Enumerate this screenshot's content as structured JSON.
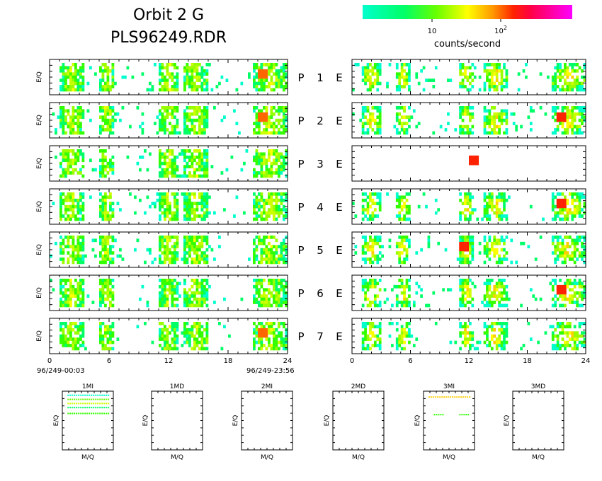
{
  "header": {
    "title_line1": "Orbit 2 G",
    "title_line2": "PLS96249.RDR",
    "colorbar_label": "counts/second",
    "colorbar_tick_10": "10",
    "colorbar_tick_100_base": "10",
    "colorbar_tick_100_exp": "2",
    "colorbar_colors": [
      "#00ffcc",
      "#00ff66",
      "#33ff00",
      "#99ff00",
      "#ffff00",
      "#ffcc00",
      "#ff9900",
      "#ff6600",
      "#ff2200",
      "#ff0033",
      "#ff0066",
      "#ff0099",
      "#ff00cc",
      "#ff00ff"
    ]
  },
  "axes": {
    "ylabel_eq": "E/Q",
    "xlabel_mq": "M/Q",
    "time_start": "96/249-00:03",
    "time_end": "96/249-23:56"
  },
  "chart_data": [
    {
      "type": "heatmap",
      "group": "P",
      "x_unit": "hour",
      "xlim": [
        0,
        24
      ],
      "xticks": [
        0,
        6,
        12,
        18,
        24
      ],
      "xtick_labels": [
        "0",
        "6",
        "12",
        "18",
        "24"
      ],
      "ylabel": "E/Q",
      "panels": [
        {
          "label": "P",
          "num": "1",
          "active_bands": [
            [
              1,
              3.5
            ],
            [
              5,
              6.5
            ],
            [
              11,
              13
            ],
            [
              13.5,
              16
            ],
            [
              20.5,
              24
            ]
          ],
          "peak_hour": 21.5
        },
        {
          "label": "P",
          "num": "2",
          "active_bands": [
            [
              1,
              3.5
            ],
            [
              5,
              6.5
            ],
            [
              11,
              13
            ],
            [
              13.5,
              16
            ],
            [
              20.5,
              24
            ]
          ],
          "peak_hour": 21.5
        },
        {
          "label": "P",
          "num": "3",
          "active_bands": [
            [
              1,
              3.5
            ],
            [
              5,
              6.5
            ],
            [
              11,
              13
            ],
            [
              13.5,
              16
            ],
            [
              20.5,
              24
            ]
          ],
          "peak_hour": null
        },
        {
          "label": "P",
          "num": "4",
          "active_bands": [
            [
              1,
              3.5
            ],
            [
              5,
              6.5
            ],
            [
              11,
              13
            ],
            [
              13.5,
              16
            ],
            [
              20.5,
              24
            ]
          ],
          "peak_hour": null
        },
        {
          "label": "P",
          "num": "5",
          "active_bands": [
            [
              1,
              3.5
            ],
            [
              5,
              6.5
            ],
            [
              11,
              13
            ],
            [
              13.5,
              16
            ],
            [
              20.5,
              24
            ]
          ],
          "peak_hour": null
        },
        {
          "label": "P",
          "num": "6",
          "active_bands": [
            [
              1,
              3.5
            ],
            [
              5,
              6.5
            ],
            [
              11,
              13
            ],
            [
              13.5,
              16
            ],
            [
              20.5,
              24
            ]
          ],
          "peak_hour": null
        },
        {
          "label": "P",
          "num": "7",
          "active_bands": [
            [
              1,
              3.5
            ],
            [
              5,
              6.5
            ],
            [
              11,
              13
            ],
            [
              13.5,
              16
            ],
            [
              20.5,
              24
            ]
          ],
          "peak_hour": 21.5
        }
      ]
    },
    {
      "type": "heatmap",
      "group": "E",
      "x_unit": "hour",
      "xlim": [
        0,
        24
      ],
      "xticks": [
        0,
        6,
        12,
        18,
        24
      ],
      "xtick_labels": [
        "0",
        "6",
        "12",
        "18",
        "24"
      ],
      "panels": [
        {
          "label": "E",
          "num": "1",
          "active_bands": [
            [
              1,
              3
            ],
            [
              4.5,
              6
            ],
            [
              11,
              12.5
            ],
            [
              13.5,
              16
            ],
            [
              20.5,
              24
            ]
          ],
          "peak_hour": null
        },
        {
          "label": "E",
          "num": "2",
          "active_bands": [
            [
              1,
              3
            ],
            [
              4.5,
              6
            ],
            [
              11,
              12.5
            ],
            [
              13.5,
              16
            ],
            [
              20.5,
              24
            ]
          ],
          "peak_hour": 21.5
        },
        {
          "label": "E",
          "num": "3",
          "active_bands": [],
          "peak_hour": 12.5
        },
        {
          "label": "E",
          "num": "4",
          "active_bands": [
            [
              1,
              3
            ],
            [
              4.5,
              6
            ],
            [
              11,
              12.5
            ],
            [
              13.5,
              16
            ],
            [
              20.5,
              24
            ]
          ],
          "peak_hour": 21.5
        },
        {
          "label": "E",
          "num": "5",
          "active_bands": [
            [
              1,
              3
            ],
            [
              4.5,
              6
            ],
            [
              11,
              12.5
            ],
            [
              13.5,
              16
            ],
            [
              20.5,
              24
            ]
          ],
          "peak_hour": 11.5
        },
        {
          "label": "E",
          "num": "6",
          "active_bands": [
            [
              1,
              3
            ],
            [
              4.5,
              6
            ],
            [
              11,
              12.5
            ],
            [
              13.5,
              16
            ],
            [
              20.5,
              24
            ]
          ],
          "peak_hour": 21.5
        },
        {
          "label": "E",
          "num": "7",
          "active_bands": [
            [
              1,
              3
            ],
            [
              4.5,
              6
            ],
            [
              11,
              12.5
            ],
            [
              13.5,
              16
            ],
            [
              20.5,
              24
            ]
          ],
          "peak_hour": null
        }
      ]
    },
    {
      "type": "scatter",
      "group": "mass",
      "xlabel": "M/Q",
      "ylabel": "E/Q",
      "panels": [
        {
          "title": "1MI",
          "rows": [
            {
              "y": 0.93,
              "x_start": 0.1,
              "x_end": 0.9,
              "color": "#00ffcc"
            },
            {
              "y": 0.86,
              "x_start": 0.1,
              "x_end": 0.9,
              "color": "#66ff00"
            },
            {
              "y": 0.79,
              "x_start": 0.1,
              "x_end": 0.9,
              "color": "#ccff00"
            },
            {
              "y": 0.72,
              "x_start": 0.1,
              "x_end": 0.9,
              "color": "#00ff66"
            },
            {
              "y": 0.62,
              "x_start": 0.1,
              "x_end": 0.9,
              "color": "#33ff00"
            }
          ]
        },
        {
          "title": "1MD",
          "rows": []
        },
        {
          "title": "2MI",
          "rows": []
        },
        {
          "title": "2MD",
          "rows": []
        },
        {
          "title": "3MI",
          "rows": [
            {
              "y": 0.9,
              "x_start": 0.1,
              "x_end": 0.9,
              "color": "#ffcc00"
            },
            {
              "y": 0.6,
              "x_start": 0.2,
              "x_end": 0.4,
              "color": "#33ff00"
            },
            {
              "y": 0.6,
              "x_start": 0.7,
              "x_end": 0.9,
              "color": "#33ff00"
            }
          ]
        },
        {
          "title": "3MD",
          "rows": []
        }
      ]
    }
  ]
}
